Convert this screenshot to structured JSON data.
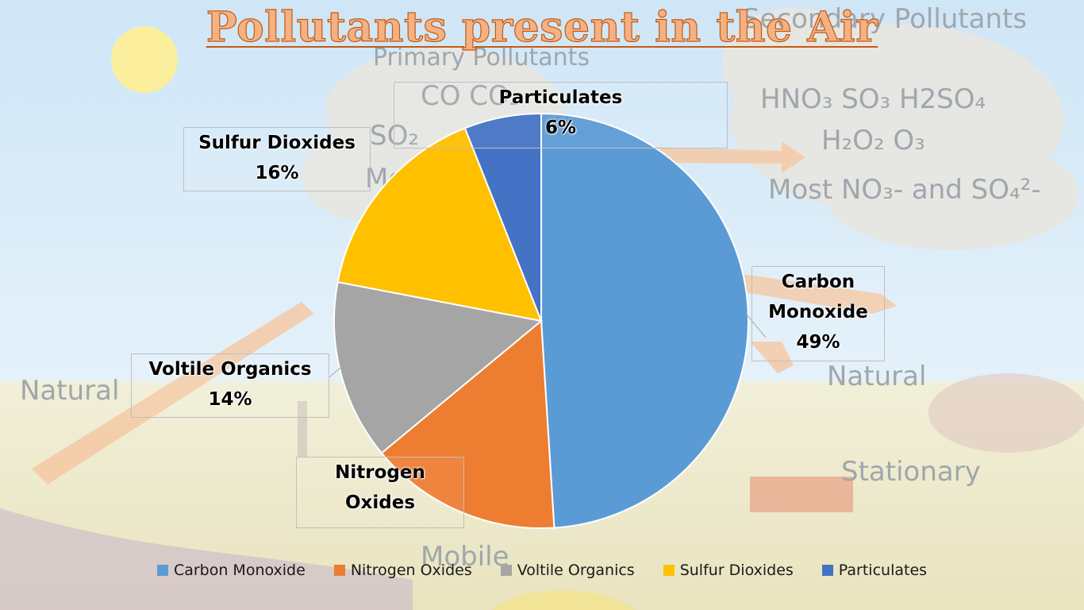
{
  "title": "Pollutants present in the Air",
  "background": {
    "secondary_heading": "Secondary\nPollutants",
    "secondary_line1": "HNO₃  SO₃  H2SO₄",
    "secondary_line2": "H₂O₂     O₃",
    "secondary_line3": "Most NO₃- and SO₄²-",
    "primary_heading": "Primary Pollutants",
    "primary_line1": "CO      CO₂",
    "primary_line2": "SO₂",
    "primary_line3": "Mo",
    "natural_left": "Natural",
    "natural_right": "Natural",
    "stationary": "Stationary",
    "mobile": "Mobile"
  },
  "colors": {
    "carbon_monoxide": "#5b9bd5",
    "nitrogen_oxides": "#ed7d31",
    "voltile_organics": "#a5a5a5",
    "sulfur_dioxides": "#ffc000",
    "particulates": "#4472c4",
    "title_fill": "#f4b183",
    "title_stroke": "#c55a11"
  },
  "chart_data": {
    "type": "pie",
    "title": "Pollutants present in the Air",
    "categories": [
      "Carbon Monoxide",
      "Nitrogen Oxides",
      "Voltile Organics",
      "Sulfur Dioxides",
      "Particulates"
    ],
    "values": [
      49,
      15,
      14,
      16,
      6
    ],
    "data_labels": [
      "Carbon\nMonoxide\n49%",
      "Nitrogen\nOxides",
      "Voltile Organics\n14%",
      "Sulfur Dioxides\n16%",
      "Particulates\n6%"
    ],
    "legend": {
      "position": "bottom",
      "entries": [
        "Carbon Monoxide",
        "Nitrogen Oxides",
        "Voltile Organics",
        "Sulfur Dioxides",
        "Particulates"
      ]
    }
  }
}
